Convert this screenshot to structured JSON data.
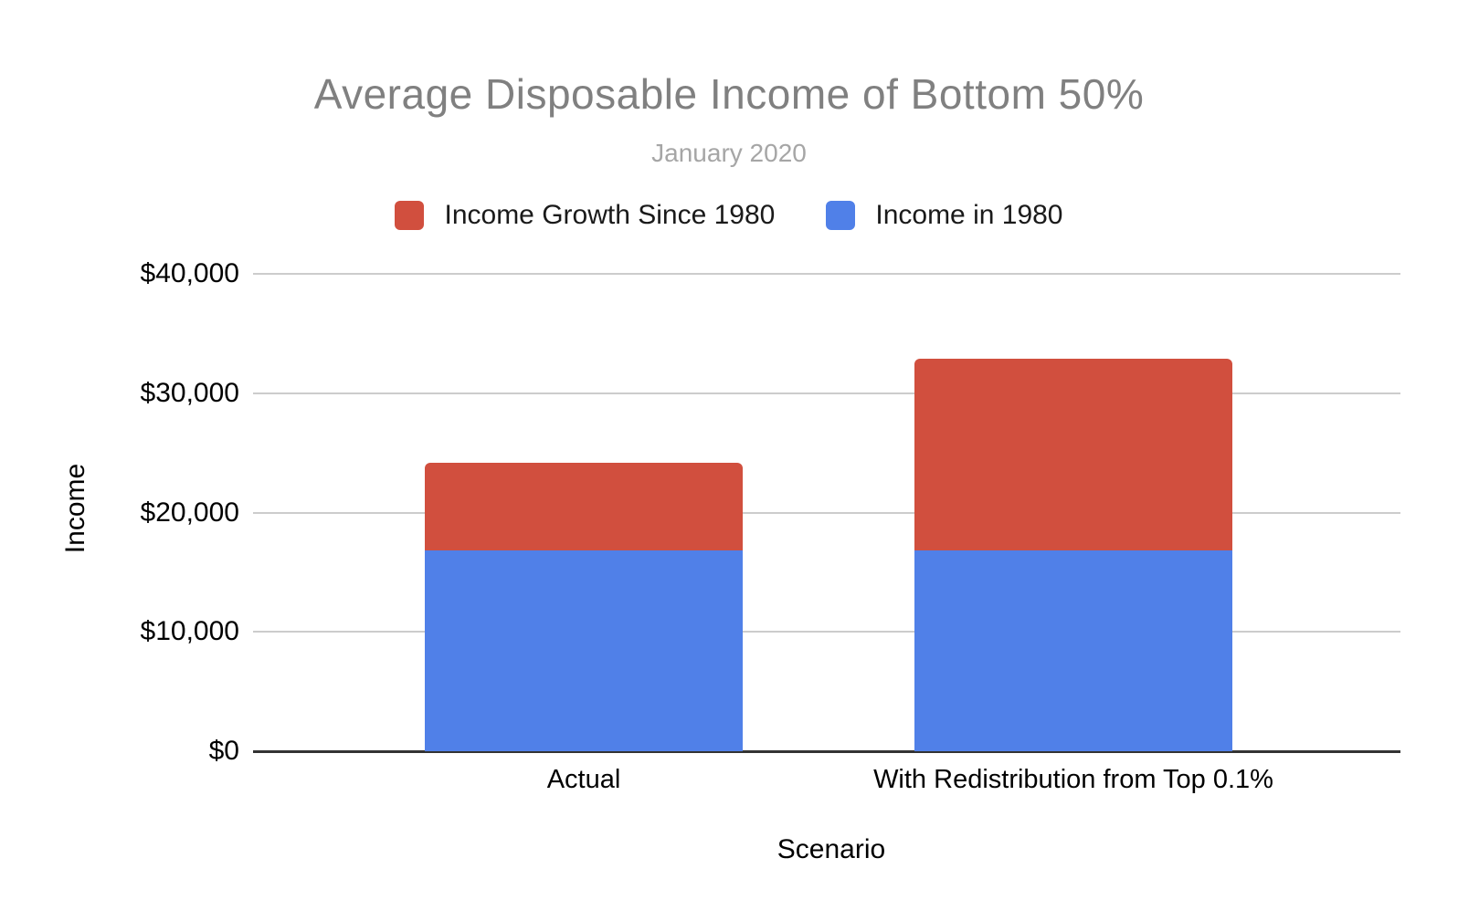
{
  "chart_data": {
    "type": "bar",
    "stacked": true,
    "title": "Average Disposable Income of Bottom 50%",
    "subtitle": "January 2020",
    "xlabel": "Scenario",
    "ylabel": "Income",
    "categories": [
      "Actual",
      "With Redistribution from Top 0.1%"
    ],
    "series": [
      {
        "name": "Income in 1980",
        "color": "#5080E8",
        "values": [
          16800,
          16800
        ]
      },
      {
        "name": "Income Growth Since 1980",
        "color": "#D14F3E",
        "values": [
          7400,
          16100
        ]
      }
    ],
    "stack_totals": [
      24200,
      32900
    ],
    "ylim": [
      0,
      40000
    ],
    "yticks": [
      {
        "value": 0,
        "label": "$0"
      },
      {
        "value": 10000,
        "label": "$10,000"
      },
      {
        "value": 20000,
        "label": "$20,000"
      },
      {
        "value": 30000,
        "label": "$30,000"
      },
      {
        "value": 40000,
        "label": "$40,000"
      }
    ],
    "legend_position": "top",
    "legend_order": [
      1,
      0
    ],
    "grid": true
  },
  "colors": {
    "title_text": "#808080",
    "subtitle_text": "#a6a6a6",
    "axis_text": "#000000",
    "gridline": "#cccccc",
    "zero_axis": "#333333",
    "background": "#ffffff"
  }
}
